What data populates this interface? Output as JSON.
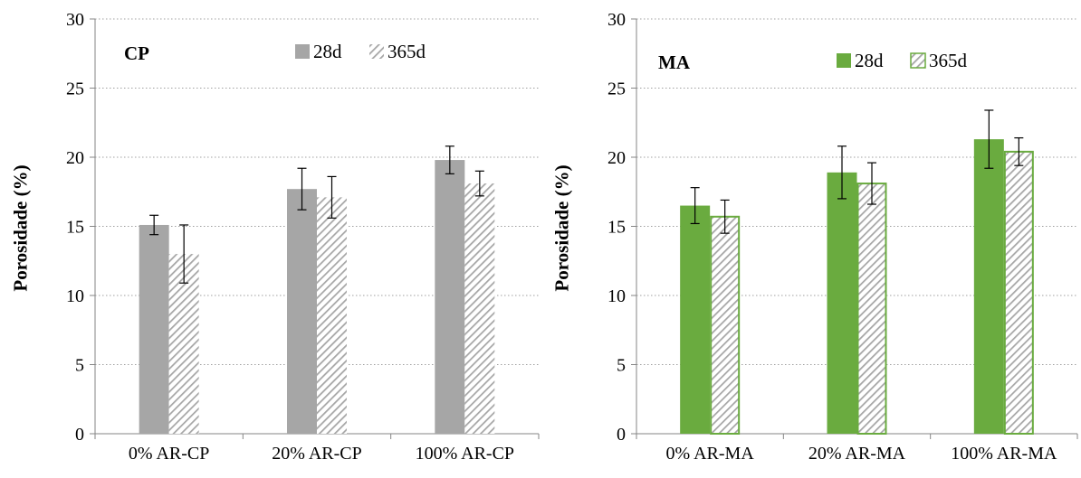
{
  "chart_data": [
    {
      "type": "bar",
      "title": "CP",
      "xlabel": "",
      "ylabel": "Porosidade (%)",
      "ylim": [
        0,
        30
      ],
      "yticks": [
        0,
        5,
        10,
        15,
        20,
        25,
        30
      ],
      "grid": true,
      "legend_position": "top-right",
      "categories": [
        "0% AR-CP",
        "20% AR-CP",
        "100% AR-CP"
      ],
      "series": [
        {
          "name": "28d",
          "values": [
            15.1,
            17.7,
            19.8
          ],
          "errors": [
            0.7,
            1.5,
            1.0
          ],
          "color": "#a6a6a6",
          "pattern": "solid"
        },
        {
          "name": "365d",
          "values": [
            13.0,
            17.1,
            18.1
          ],
          "errors": [
            2.1,
            1.5,
            0.9
          ],
          "color": "#a6a6a6",
          "pattern": "hatched"
        }
      ]
    },
    {
      "type": "bar",
      "title": "MA",
      "xlabel": "",
      "ylabel": "Porosidade (%)",
      "ylim": [
        0,
        30
      ],
      "yticks": [
        0,
        5,
        10,
        15,
        20,
        25,
        30
      ],
      "grid": true,
      "legend_position": "top-right",
      "categories": [
        "0% AR-MA",
        "20% AR-MA",
        "100% AR-MA"
      ],
      "series": [
        {
          "name": "28d",
          "values": [
            16.5,
            18.9,
            21.3
          ],
          "errors": [
            1.3,
            1.9,
            2.1
          ],
          "color": "#6aab3f",
          "pattern": "solid"
        },
        {
          "name": "365d",
          "values": [
            15.7,
            18.1,
            20.4
          ],
          "errors": [
            1.2,
            1.5,
            1.0
          ],
          "color": "#6aab3f",
          "pattern": "hatched"
        }
      ]
    }
  ]
}
